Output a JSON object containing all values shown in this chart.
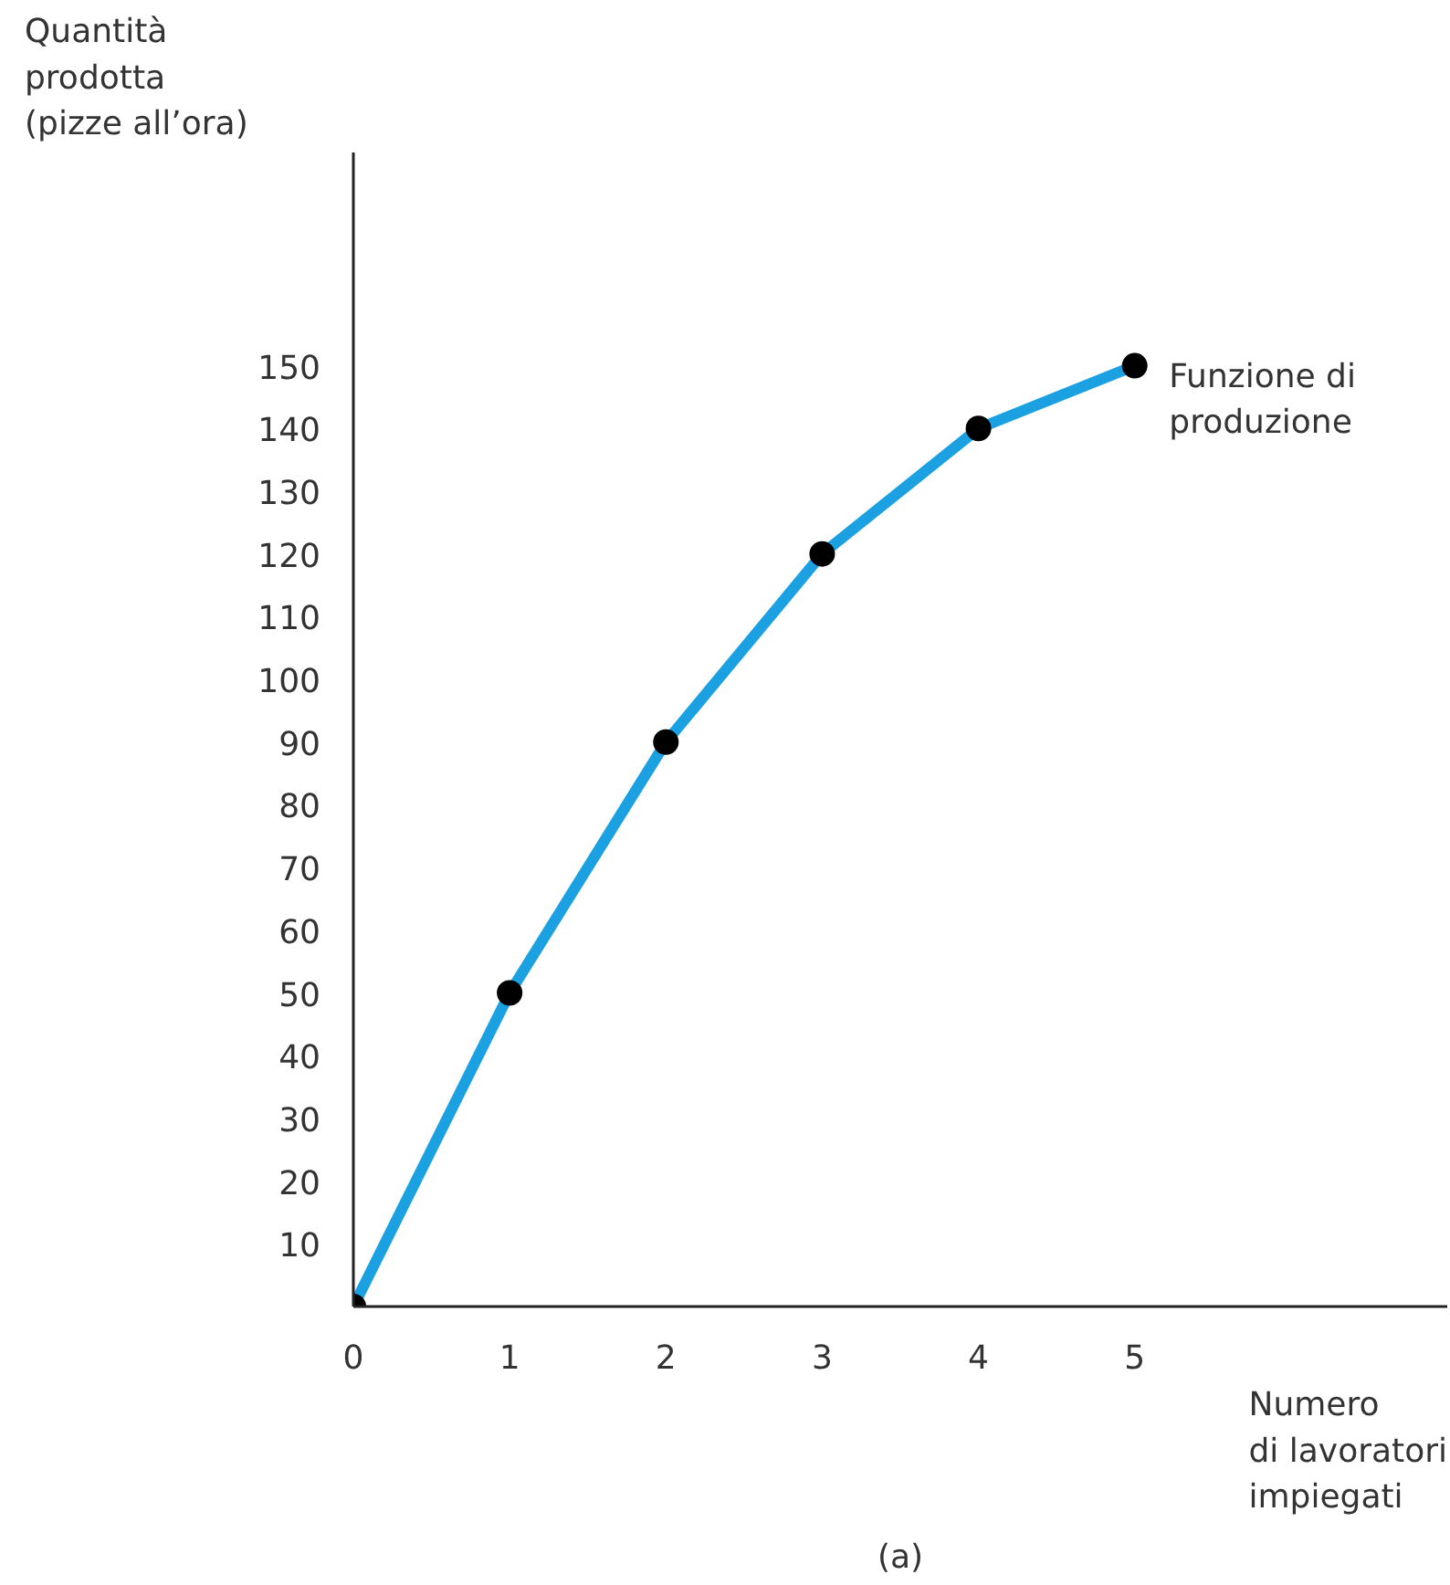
{
  "chart_data": {
    "type": "line",
    "x": [
      0,
      1,
      2,
      3,
      4,
      5
    ],
    "series": [
      {
        "color": "#1ba1e2",
        "values": [
          0,
          50,
          90,
          120,
          140,
          150
        ]
      }
    ],
    "xlim": [
      0,
      7
    ],
    "ylim": [
      0,
      184
    ],
    "xticks": [
      0,
      1,
      2,
      3,
      4,
      5
    ],
    "yticks": [
      10,
      20,
      30,
      40,
      50,
      60,
      70,
      80,
      90,
      100,
      110,
      120,
      130,
      140,
      150
    ],
    "xlabel": "Numero\ndi lavoratori\nimpiegati",
    "ylabel": "Quantità\nprodotta\n(pizze all’ora)",
    "annotations": [
      {
        "text": "Funzione di\nproduzione",
        "x": 5,
        "y": 150
      },
      "(a)"
    ],
    "marker": "circle",
    "line_style": "solid"
  }
}
